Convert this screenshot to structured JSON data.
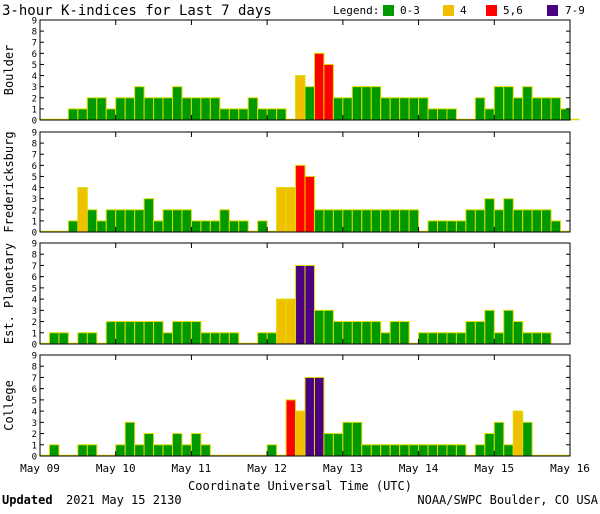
{
  "title": "3-hour K-indices for Last 7 days",
  "legend": {
    "label": "Legend:",
    "items": [
      {
        "label": "0-3",
        "color": "#009900"
      },
      {
        "label": "4",
        "color": "#f0c000"
      },
      {
        "label": "5,6",
        "color": "#ff0000"
      },
      {
        "label": "7-9",
        "color": "#4b0082"
      }
    ]
  },
  "footer": {
    "updated_label": "Updated",
    "updated_value": "2021 May 15 2130",
    "source": "NOAA/SWPC Boulder, CO USA"
  },
  "chart_data": [
    {
      "type": "bar",
      "ylabel": "Boulder",
      "ylim": [
        0,
        9
      ],
      "xlabel": "Coordinate Universal Time (UTC)",
      "x_ticks": [
        "May 09",
        "May 10",
        "May 11",
        "May 12",
        "May 13",
        "May 14",
        "May 15",
        "May 16"
      ],
      "values": [
        0,
        0,
        0,
        1,
        1,
        2,
        2,
        1,
        2,
        2,
        3,
        2,
        2,
        2,
        3,
        2,
        2,
        2,
        2,
        1,
        1,
        1,
        2,
        1,
        1,
        1,
        0,
        4,
        3,
        6,
        5,
        2,
        2,
        3,
        3,
        3,
        2,
        2,
        2,
        2,
        2,
        1,
        1,
        1,
        0,
        0,
        2,
        1,
        3,
        3,
        2,
        3,
        2,
        2,
        2,
        1,
        0
      ]
    },
    {
      "type": "bar",
      "ylabel": "Fredericksburg",
      "ylim": [
        0,
        9
      ],
      "xlabel": "Coordinate Universal Time (UTC)",
      "x_ticks": [
        "May 09",
        "May 10",
        "May 11",
        "May 12",
        "May 13",
        "May 14",
        "May 15",
        "May 16"
      ],
      "values": [
        0,
        0,
        0,
        1,
        4,
        2,
        1,
        2,
        2,
        2,
        2,
        3,
        1,
        2,
        2,
        2,
        1,
        1,
        1,
        2,
        1,
        1,
        0,
        1,
        0,
        4,
        4,
        6,
        5,
        2,
        2,
        2,
        2,
        2,
        2,
        2,
        2,
        2,
        2,
        2,
        0,
        1,
        1,
        1,
        1,
        2,
        2,
        3,
        2,
        3,
        2,
        2,
        2,
        2,
        1,
        0
      ]
    },
    {
      "type": "bar",
      "ylabel": "Est. Planetary",
      "ylim": [
        0,
        9
      ],
      "xlabel": "Coordinate Universal Time (UTC)",
      "x_ticks": [
        "May 09",
        "May 10",
        "May 11",
        "May 12",
        "May 13",
        "May 14",
        "May 15",
        "May 16"
      ],
      "values": [
        0,
        1,
        1,
        0,
        1,
        1,
        0,
        2,
        2,
        2,
        2,
        2,
        2,
        1,
        2,
        2,
        2,
        1,
        1,
        1,
        1,
        0,
        0,
        1,
        1,
        4,
        4,
        7,
        7,
        3,
        3,
        2,
        2,
        2,
        2,
        2,
        1,
        2,
        2,
        0,
        1,
        1,
        1,
        1,
        1,
        2,
        2,
        3,
        1,
        3,
        2,
        1,
        1,
        1
      ]
    },
    {
      "type": "bar",
      "ylabel": "College",
      "ylim": [
        0,
        9
      ],
      "xlabel": "Coordinate Universal Time (UTC)",
      "x_ticks": [
        "May 09",
        "May 10",
        "May 11",
        "May 12",
        "May 13",
        "May 14",
        "May 15",
        "May 16"
      ],
      "values": [
        0,
        1,
        0,
        0,
        1,
        1,
        0,
        0,
        1,
        3,
        1,
        2,
        1,
        1,
        2,
        1,
        2,
        1,
        0,
        0,
        0,
        0,
        0,
        0,
        1,
        0,
        5,
        4,
        7,
        7,
        2,
        2,
        3,
        3,
        1,
        1,
        1,
        1,
        1,
        1,
        1,
        1,
        1,
        1,
        1,
        0,
        1,
        2,
        3,
        1,
        4,
        3,
        0,
        0,
        0,
        0
      ]
    }
  ]
}
